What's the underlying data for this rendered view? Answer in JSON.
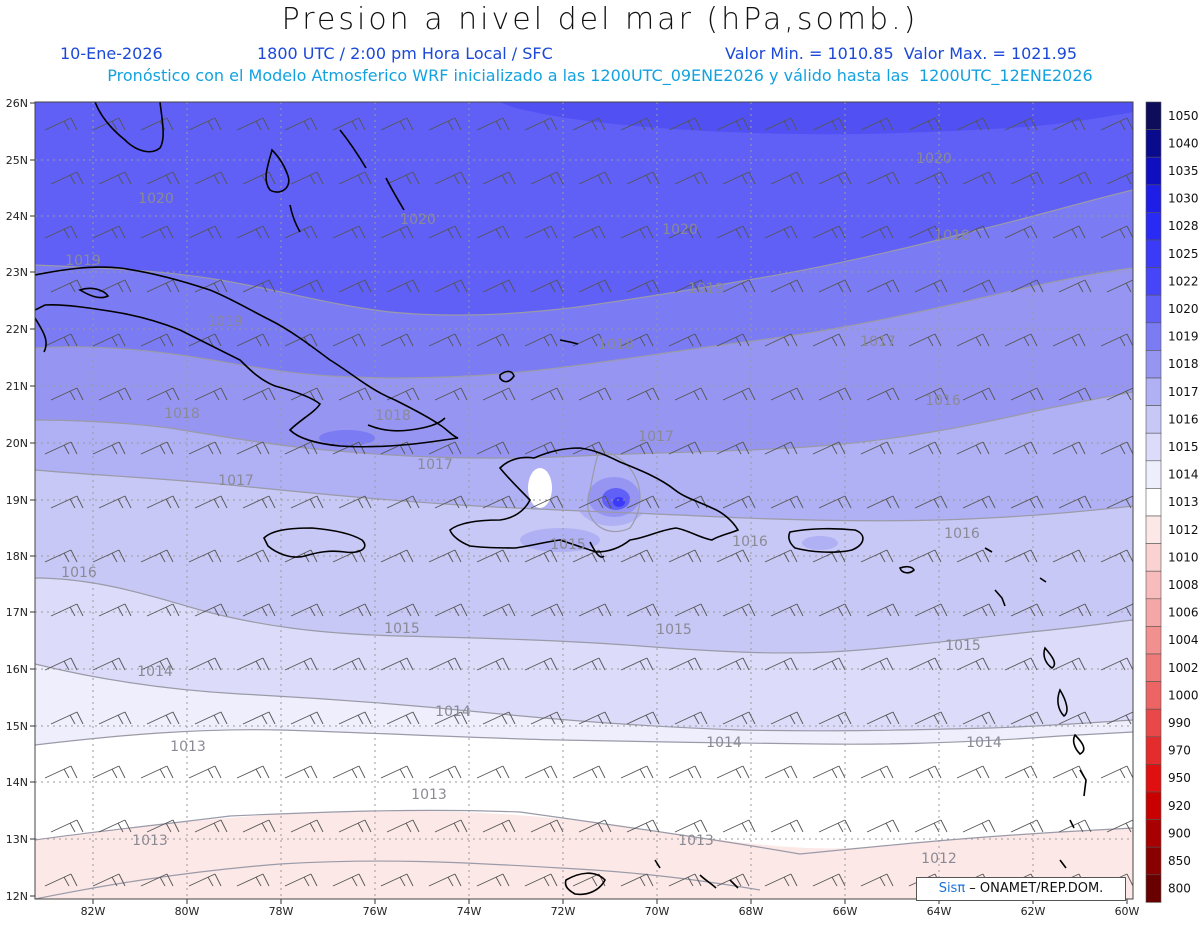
{
  "header": {
    "title": "Presion a nivel del mar (hPa,somb.)",
    "date": "10-Ene-2026",
    "time": "1800 UTC / 2:00 pm Hora Local / SFC",
    "minmax": "Valor Min. = 1010.85  Valor Max. = 1021.95",
    "model": "Pronóstico con el Modelo Atmosferico WRF inicializado a las 1200UTC_09ENE2026 y válido hasta las  1200UTC_12ENE2026"
  },
  "axes": {
    "lat_labels": [
      "26N",
      "25N",
      "24N",
      "23N",
      "22N",
      "21N",
      "20N",
      "19N",
      "18N",
      "17N",
      "16N",
      "15N",
      "14N",
      "13N",
      "12N"
    ],
    "lon_labels": [
      "82W",
      "80W",
      "78W",
      "76W",
      "74W",
      "72W",
      "70W",
      "68W",
      "66W",
      "64W",
      "62W",
      "60W"
    ]
  },
  "colorbar": {
    "levels": [
      "1050",
      "1040",
      "1035",
      "1030",
      "1028",
      "1025",
      "1022",
      "1020",
      "1019",
      "1018",
      "1017",
      "1016",
      "1015",
      "1014",
      "1013",
      "1012",
      "1010",
      "1008",
      "1006",
      "1004",
      "1002",
      "1000",
      "990",
      "970",
      "950",
      "920",
      "900",
      "850",
      "800"
    ],
    "colors": [
      "#0d0d59",
      "#0a0a8c",
      "#0f0fc0",
      "#1e1ee6",
      "#2a2af5",
      "#3a3af8",
      "#4646f8",
      "#6060f6",
      "#7b7bf4",
      "#9696f2",
      "#b0b0f4",
      "#c8c8f6",
      "#dcdcfa",
      "#eeeefc",
      "#ffffff",
      "#fde8e8",
      "#fbd2d2",
      "#f8bcbc",
      "#f5a6a6",
      "#f29090",
      "#ef7a7a",
      "#ec6464",
      "#e84848",
      "#e52c2c",
      "#e01010",
      "#c80000",
      "#a80000",
      "#880000",
      "#680000"
    ]
  },
  "isobars": [
    {
      "label": "1020"
    },
    {
      "label": "1020"
    },
    {
      "label": "1020"
    },
    {
      "label": "1020"
    },
    {
      "label": "1019"
    },
    {
      "label": "1019"
    },
    {
      "label": "1019"
    },
    {
      "label": "1018"
    },
    {
      "label": "1018"
    },
    {
      "label": "1018"
    },
    {
      "label": "1018"
    },
    {
      "label": "1017"
    },
    {
      "label": "1017"
    },
    {
      "label": "1017"
    },
    {
      "label": "1017"
    },
    {
      "label": "1016"
    },
    {
      "label": "1016"
    },
    {
      "label": "1016"
    },
    {
      "label": "1016"
    },
    {
      "label": "1015"
    },
    {
      "label": "1015"
    },
    {
      "label": "1015"
    },
    {
      "label": "1015"
    },
    {
      "label": "1014"
    },
    {
      "label": "1014"
    },
    {
      "label": "1014"
    },
    {
      "label": "1014"
    },
    {
      "label": "1013"
    },
    {
      "label": "1013"
    },
    {
      "label": "1013"
    },
    {
      "label": "1013"
    },
    {
      "label": "1012"
    }
  ],
  "credit": {
    "brand": "Sisπ",
    "text": " – ONAMET/REP.DOM."
  }
}
